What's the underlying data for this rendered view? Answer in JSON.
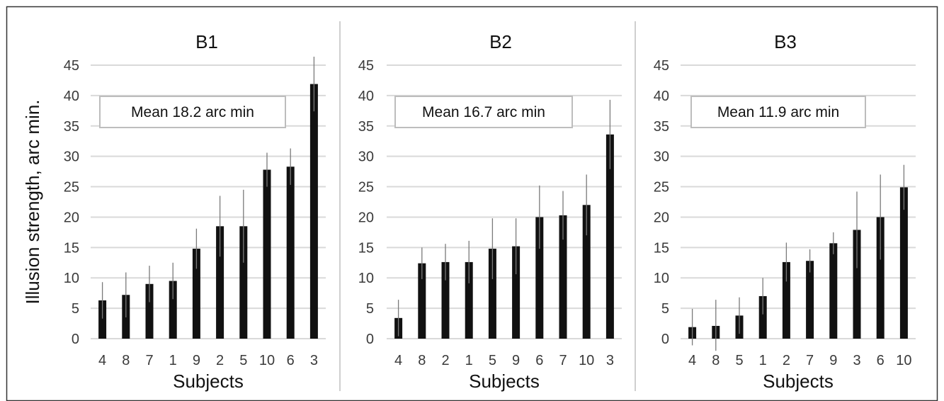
{
  "chart_data": [
    {
      "type": "bar",
      "title": "B1",
      "xlabel": "Subjects",
      "ylabel": "Illusion strength, arc min.",
      "ylim": [
        0,
        45
      ],
      "yticks": [
        0,
        5,
        10,
        15,
        20,
        25,
        30,
        35,
        40,
        45
      ],
      "grid": true,
      "annotation": "Mean 18.2 arc min",
      "categories": [
        "4",
        "8",
        "7",
        "1",
        "9",
        "2",
        "5",
        "10",
        "6",
        "3"
      ],
      "values": [
        6.3,
        7.2,
        9.0,
        9.5,
        14.8,
        18.5,
        18.5,
        27.8,
        28.3,
        41.9
      ],
      "error": [
        3.0,
        3.7,
        3.0,
        3.0,
        3.3,
        5.0,
        6.0,
        2.8,
        3.0,
        4.5
      ]
    },
    {
      "type": "bar",
      "title": "B2",
      "xlabel": "Subjects",
      "ylabel": "",
      "ylim": [
        0,
        45
      ],
      "yticks": [
        0,
        5,
        10,
        15,
        20,
        25,
        30,
        35,
        40,
        45
      ],
      "grid": true,
      "annotation": "Mean 16.7 arc min",
      "categories": [
        "4",
        "8",
        "2",
        "1",
        "5",
        "9",
        "6",
        "7",
        "10",
        "3"
      ],
      "values": [
        3.4,
        12.4,
        12.6,
        12.6,
        14.8,
        15.2,
        20.0,
        20.3,
        22.0,
        33.6
      ],
      "error": [
        3.0,
        2.6,
        3.0,
        3.5,
        5.0,
        4.6,
        5.2,
        4.0,
        5.0,
        5.7
      ]
    },
    {
      "type": "bar",
      "title": "B3",
      "xlabel": "Subjects",
      "ylabel": "",
      "ylim": [
        0,
        45
      ],
      "yticks": [
        0,
        5,
        10,
        15,
        20,
        25,
        30,
        35,
        40,
        45
      ],
      "grid": true,
      "annotation": "Mean 11.9 arc min",
      "categories": [
        "4",
        "8",
        "5",
        "1",
        "2",
        "7",
        "9",
        "3",
        "6",
        "10"
      ],
      "values": [
        1.9,
        2.1,
        3.8,
        7.0,
        12.6,
        12.8,
        15.7,
        17.9,
        20.0,
        24.9
      ],
      "error": [
        3.0,
        4.3,
        3.0,
        3.0,
        3.2,
        1.9,
        1.8,
        6.3,
        7.0,
        3.7
      ]
    }
  ],
  "colors": {
    "bar": "#111111",
    "error_bar": "#7a7a7a",
    "grid": "#d9d9d9",
    "divider": "#cfcfcf",
    "box_border": "#bdbdbd",
    "frame": "#333333"
  }
}
